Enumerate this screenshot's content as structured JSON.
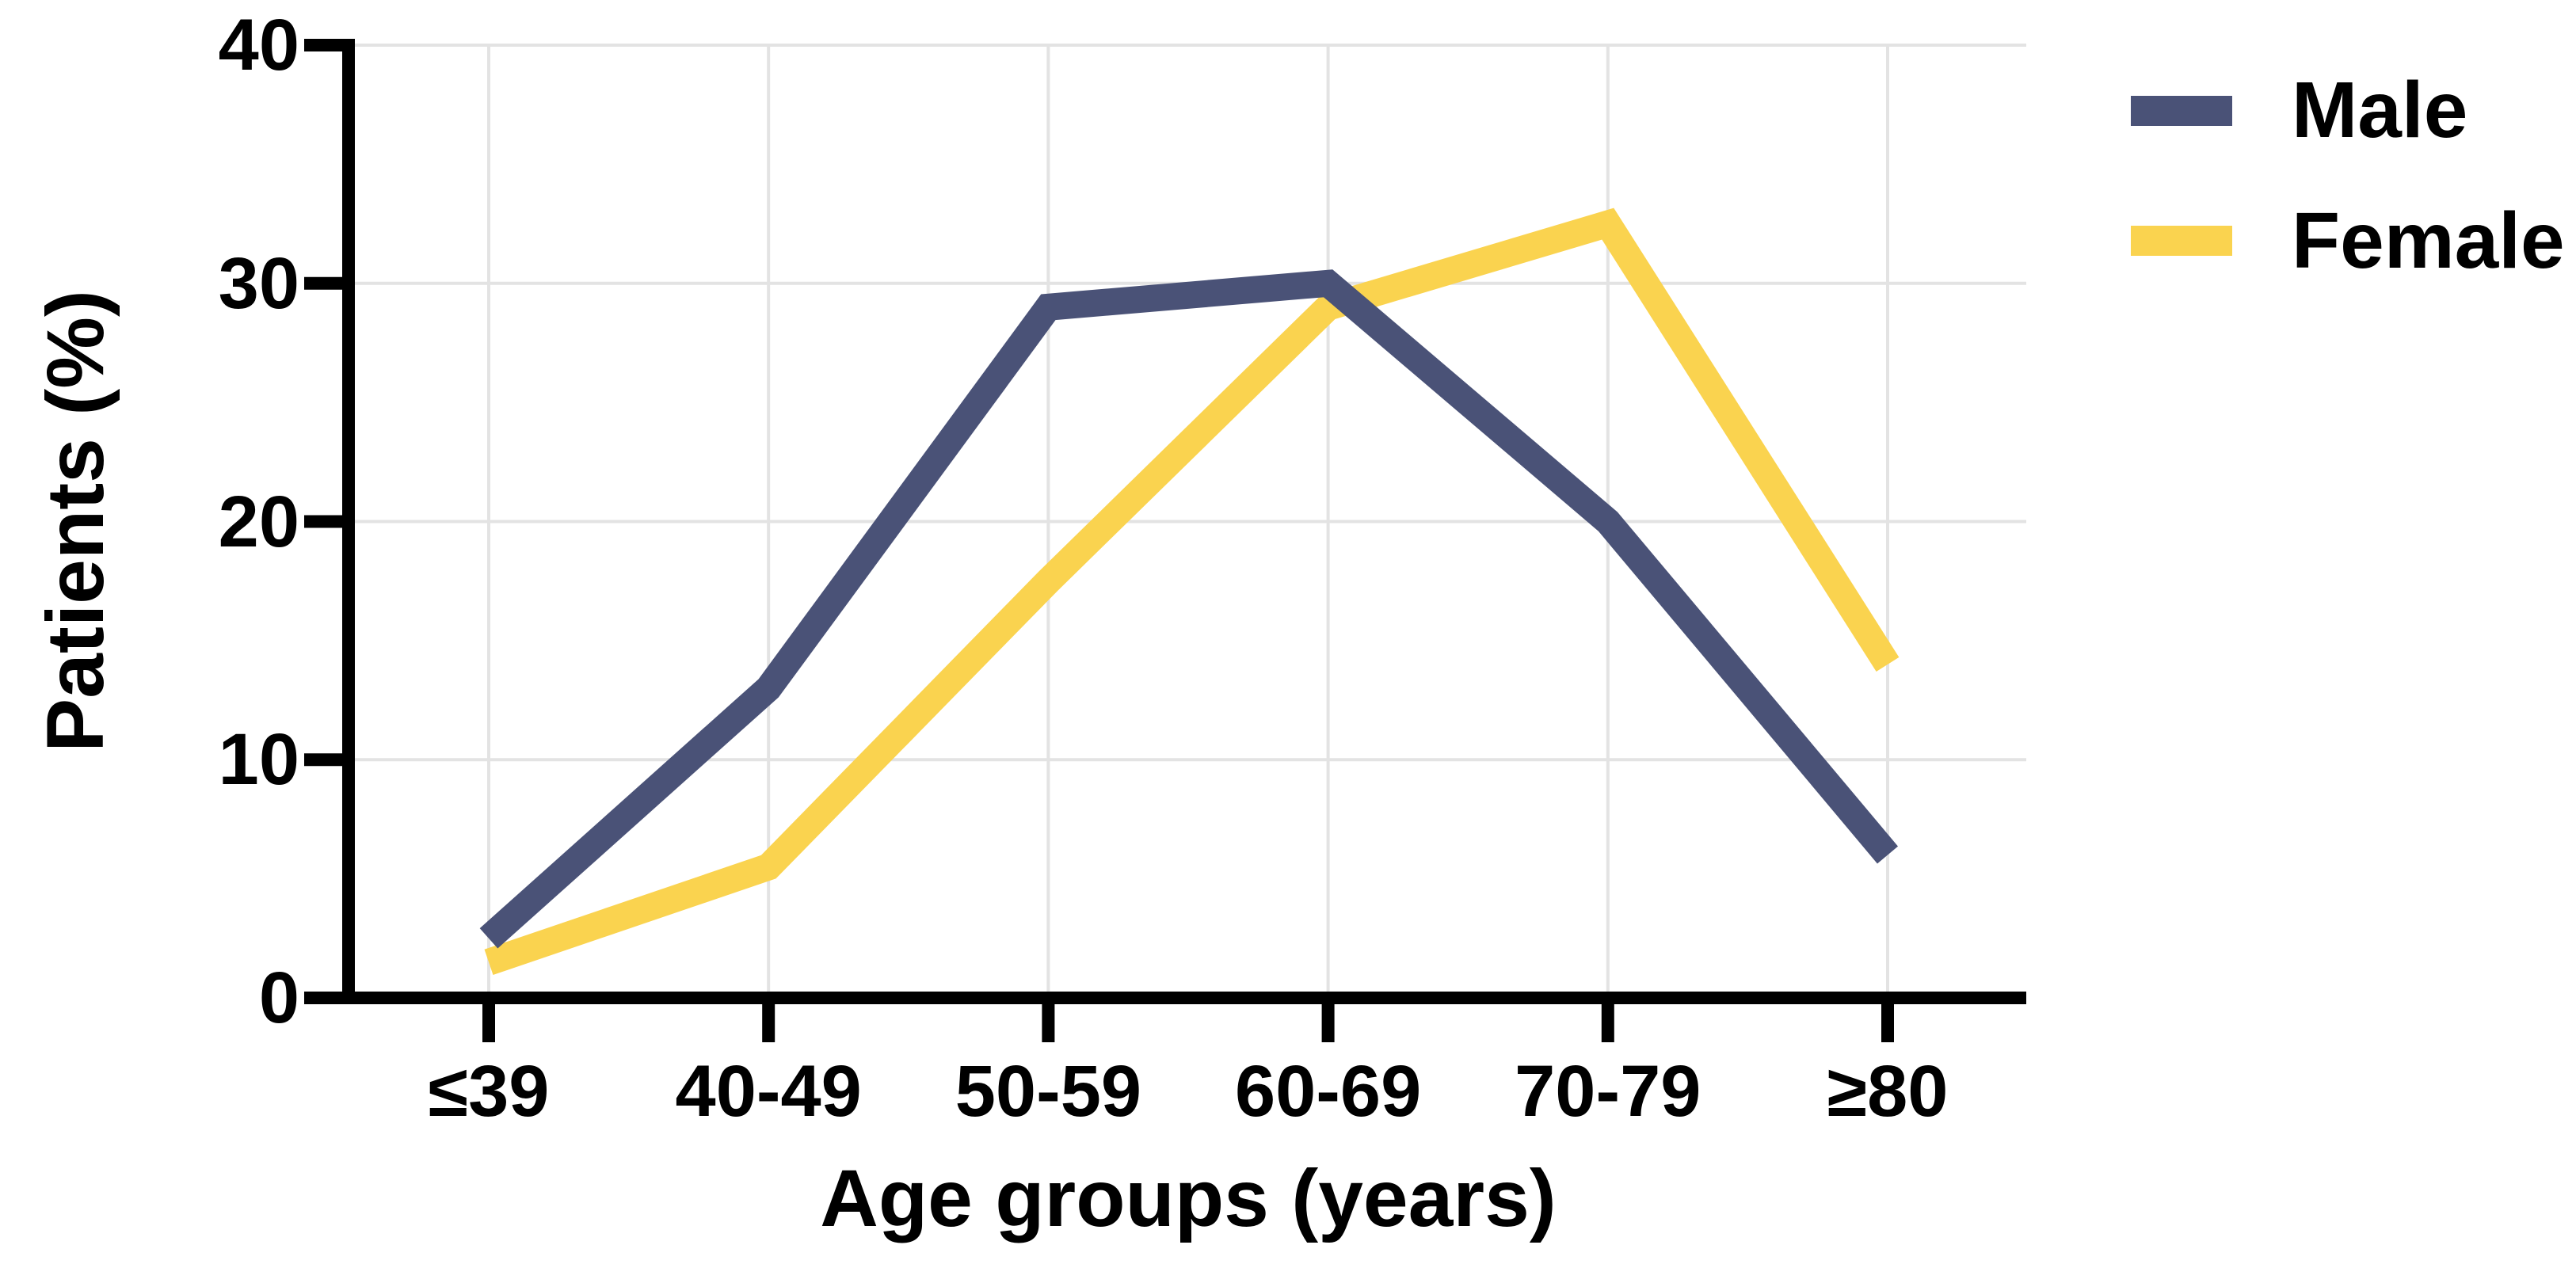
{
  "chart": {
    "y_axis_title": "Patients (%)",
    "x_axis_title": "Age groups (years)"
  },
  "legend": {
    "items": [
      {
        "label": "Male",
        "color": "#4A5277"
      },
      {
        "label": "Female",
        "color": "#FAD34F"
      }
    ]
  },
  "chart_data": {
    "type": "line",
    "title": "",
    "categories": [
      "≤39",
      "40-49",
      "50-59",
      "60-69",
      "70-79",
      "≥80"
    ],
    "series": [
      {
        "name": "Male",
        "color": "#4A5277",
        "values": [
          2.5,
          13,
          29,
          30,
          20,
          6
        ]
      },
      {
        "name": "Female",
        "color": "#FAD34F",
        "values": [
          1.5,
          5.5,
          17.5,
          29,
          32.5,
          14
        ]
      }
    ],
    "xlabel": "Age groups (years)",
    "ylabel": "Patients (%)",
    "ylim": [
      0,
      40
    ],
    "yticks": [
      0,
      10,
      20,
      30,
      40
    ],
    "grid": true,
    "grid_color": "#E3E3E3",
    "axis_color": "#000000",
    "legend_position": "top-right"
  }
}
